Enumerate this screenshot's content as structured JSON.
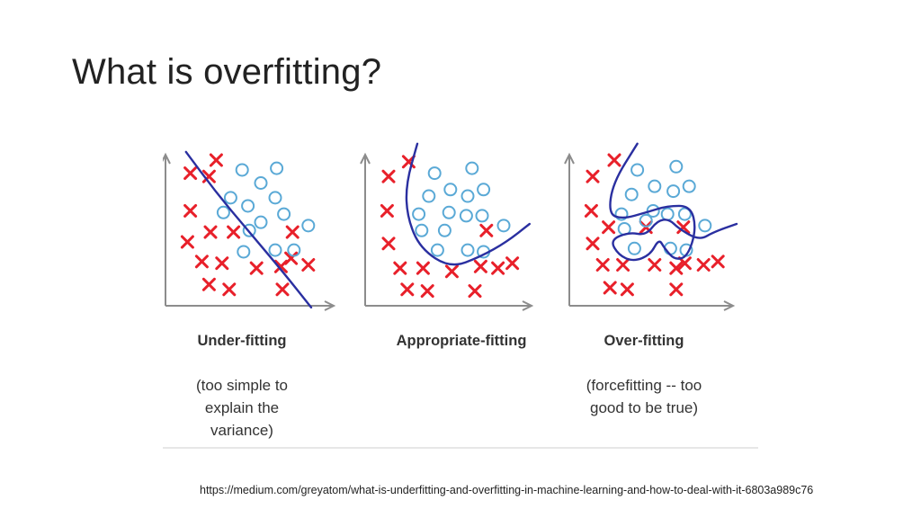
{
  "slide": {
    "title": "What is overfitting?",
    "source_url": "https://medium.com/greyatom/what-is-underfitting-and-overfitting-in-machine-learning-and-how-to-deal-with-it-6803a989c76"
  },
  "colors": {
    "cross": "#e8202a",
    "circle": "#5aa9d6",
    "boundary": "#2a2fa0",
    "axis": "#8c8c8c",
    "text": "#333333"
  },
  "chart_data": [
    {
      "type": "scatter",
      "title": "Under-fitting",
      "caption": [
        "(too simple to",
        "explain the",
        "variance)"
      ],
      "xlim": [
        0,
        10
      ],
      "ylim": [
        0,
        10
      ],
      "series": [
        {
          "marker": "cross",
          "points": [
            [
              2.9,
              8.9
            ],
            [
              1.1,
              8.1
            ],
            [
              2.4,
              7.9
            ],
            [
              1.1,
              5.8
            ],
            [
              2.5,
              4.5
            ],
            [
              4.1,
              4.5
            ],
            [
              0.9,
              3.9
            ],
            [
              8.2,
              4.5
            ],
            [
              1.9,
              2.7
            ],
            [
              3.3,
              2.6
            ],
            [
              5.7,
              2.3
            ],
            [
              7.4,
              2.4
            ],
            [
              9.3,
              2.5
            ],
            [
              8.1,
              2.9
            ],
            [
              2.4,
              1.3
            ],
            [
              3.8,
              1.0
            ],
            [
              7.5,
              1.0
            ]
          ]
        },
        {
          "marker": "circle",
          "points": [
            [
              4.7,
              8.3
            ],
            [
              7.1,
              8.4
            ],
            [
              6.0,
              7.5
            ],
            [
              3.9,
              6.6
            ],
            [
              5.1,
              6.1
            ],
            [
              7.0,
              6.6
            ],
            [
              3.4,
              5.7
            ],
            [
              6.0,
              5.1
            ],
            [
              7.6,
              5.6
            ],
            [
              5.2,
              4.6
            ],
            [
              9.3,
              4.9
            ],
            [
              4.8,
              3.3
            ],
            [
              7.0,
              3.4
            ],
            [
              8.3,
              3.4
            ]
          ]
        }
      ],
      "boundary": [
        [
          0.8,
          9.4
        ],
        [
          3.0,
          6.8
        ],
        [
          5.4,
          4.3
        ],
        [
          7.6,
          2.0
        ],
        [
          9.5,
          -0.1
        ]
      ]
    },
    {
      "type": "scatter",
      "title": "Appropriate-fitting",
      "caption": [],
      "xlim": [
        0,
        10
      ],
      "ylim": [
        0,
        10
      ],
      "series": [
        {
          "marker": "cross",
          "points": [
            [
              1.0,
              7.9
            ],
            [
              2.4,
              8.8
            ],
            [
              0.9,
              5.8
            ],
            [
              1.0,
              3.8
            ],
            [
              1.8,
              2.3
            ],
            [
              3.4,
              2.3
            ],
            [
              5.4,
              2.1
            ],
            [
              7.4,
              2.4
            ],
            [
              8.6,
              2.3
            ],
            [
              9.6,
              2.6
            ],
            [
              7.8,
              4.6
            ],
            [
              2.3,
              1.0
            ],
            [
              3.7,
              0.9
            ],
            [
              7.0,
              0.9
            ]
          ]
        },
        {
          "marker": "circle",
          "points": [
            [
              4.2,
              8.1
            ],
            [
              6.8,
              8.4
            ],
            [
              5.3,
              7.1
            ],
            [
              3.8,
              6.7
            ],
            [
              6.5,
              6.7
            ],
            [
              7.6,
              7.1
            ],
            [
              3.1,
              5.6
            ],
            [
              5.2,
              5.7
            ],
            [
              6.4,
              5.5
            ],
            [
              7.5,
              5.5
            ],
            [
              3.3,
              4.6
            ],
            [
              4.9,
              4.6
            ],
            [
              9.0,
              4.9
            ],
            [
              4.4,
              3.4
            ],
            [
              6.5,
              3.4
            ],
            [
              7.6,
              3.3
            ]
          ]
        }
      ],
      "boundary": [
        [
          3.0,
          9.9
        ],
        [
          2.2,
          7.4
        ],
        [
          2.3,
          5.4
        ],
        [
          3.2,
          3.5
        ],
        [
          5.3,
          2.3
        ],
        [
          7.4,
          3.0
        ],
        [
          9.2,
          3.9
        ],
        [
          10.8,
          5.0
        ]
      ]
    },
    {
      "type": "scatter",
      "title": "Over-fitting",
      "caption": [
        "(forcefitting -- too",
        "good to be true)"
      ],
      "xlim": [
        0,
        10
      ],
      "ylim": [
        0,
        10
      ],
      "series": [
        {
          "marker": "cross",
          "points": [
            [
              1.0,
              7.9
            ],
            [
              2.5,
              8.9
            ],
            [
              0.9,
              5.8
            ],
            [
              1.0,
              3.8
            ],
            [
              2.1,
              4.8
            ],
            [
              4.7,
              4.8
            ],
            [
              7.3,
              4.8
            ],
            [
              1.7,
              2.5
            ],
            [
              3.1,
              2.5
            ],
            [
              5.3,
              2.5
            ],
            [
              6.8,
              2.3
            ],
            [
              7.4,
              2.6
            ],
            [
              8.7,
              2.5
            ],
            [
              9.7,
              2.7
            ],
            [
              2.2,
              1.1
            ],
            [
              3.4,
              1.0
            ],
            [
              6.8,
              1.0
            ]
          ]
        },
        {
          "marker": "circle",
          "points": [
            [
              4.1,
              8.3
            ],
            [
              6.8,
              8.5
            ],
            [
              5.3,
              7.3
            ],
            [
              3.7,
              6.8
            ],
            [
              6.6,
              7.0
            ],
            [
              7.7,
              7.3
            ],
            [
              3.0,
              5.6
            ],
            [
              5.2,
              5.8
            ],
            [
              6.2,
              5.6
            ],
            [
              7.4,
              5.6
            ],
            [
              3.2,
              4.7
            ],
            [
              4.7,
              5.2
            ],
            [
              8.8,
              4.9
            ],
            [
              3.9,
              3.5
            ],
            [
              6.4,
              3.5
            ],
            [
              7.5,
              3.4
            ]
          ]
        }
      ],
      "boundary": [
        [
          4.1,
          9.9
        ],
        [
          2.4,
          7.5
        ],
        [
          2.1,
          5.6
        ],
        [
          3.1,
          5.3
        ],
        [
          4.7,
          5.7
        ],
        [
          6.2,
          6.1
        ],
        [
          7.8,
          6.1
        ],
        [
          8.2,
          4.7
        ],
        [
          7.6,
          3.0
        ],
        [
          6.7,
          2.8
        ],
        [
          6.0,
          3.5
        ],
        [
          5.6,
          4.1
        ],
        [
          5.0,
          3.1
        ],
        [
          3.8,
          2.7
        ],
        [
          2.8,
          3.1
        ],
        [
          2.2,
          4.0
        ],
        [
          3.5,
          4.5
        ],
        [
          4.7,
          4.3
        ],
        [
          5.5,
          5.2
        ],
        [
          6.3,
          5.3
        ],
        [
          7.0,
          4.7
        ],
        [
          8.4,
          4.0
        ],
        [
          9.4,
          4.5
        ],
        [
          11.0,
          5.0
        ]
      ]
    }
  ]
}
